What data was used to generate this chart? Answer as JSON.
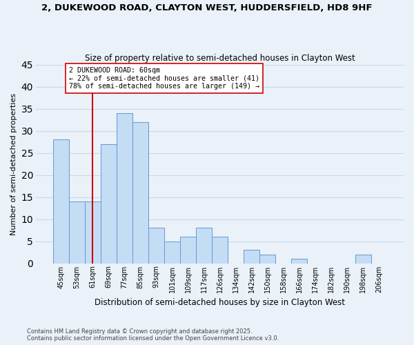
{
  "title": "2, DUKEWOOD ROAD, CLAYTON WEST, HUDDERSFIELD, HD8 9HF",
  "subtitle": "Size of property relative to semi-detached houses in Clayton West",
  "xlabel": "Distribution of semi-detached houses by size in Clayton West",
  "ylabel": "Number of semi-detached properties",
  "categories": [
    "45sqm",
    "53sqm",
    "61sqm",
    "69sqm",
    "77sqm",
    "85sqm",
    "93sqm",
    "101sqm",
    "109sqm",
    "117sqm",
    "126sqm",
    "134sqm",
    "142sqm",
    "150sqm",
    "158sqm",
    "166sqm",
    "174sqm",
    "182sqm",
    "190sqm",
    "198sqm",
    "206sqm"
  ],
  "values": [
    28,
    14,
    14,
    27,
    34,
    32,
    8,
    5,
    6,
    8,
    6,
    0,
    3,
    2,
    0,
    1,
    0,
    0,
    0,
    2,
    0
  ],
  "bar_color": "#c5dcf5",
  "bar_edge_color": "#5b9bd5",
  "grid_color": "#c8d8ea",
  "background_color": "#eaf1f8",
  "vline_x_index": 2,
  "vline_color": "#cc0000",
  "annotation_title": "2 DUKEWOOD ROAD: 60sqm",
  "annotation_line1": "← 22% of semi-detached houses are smaller (41)",
  "annotation_line2": "78% of semi-detached houses are larger (149) →",
  "annotation_box_edge_color": "#cc0000",
  "ylim": [
    0,
    45
  ],
  "yticks": [
    0,
    5,
    10,
    15,
    20,
    25,
    30,
    35,
    40,
    45
  ],
  "footnote1": "Contains HM Land Registry data © Crown copyright and database right 2025.",
  "footnote2": "Contains public sector information licensed under the Open Government Licence v3.0."
}
